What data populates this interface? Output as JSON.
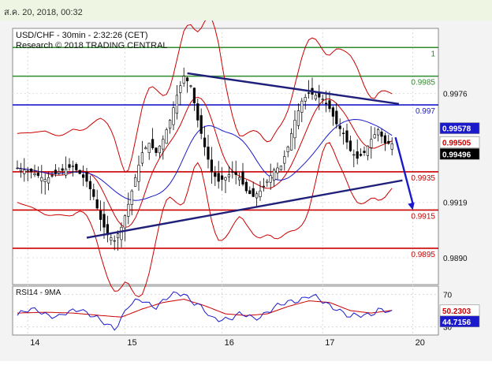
{
  "header": {
    "date": "ส.ค. 20, 2018, 00:32"
  },
  "chart_data": {
    "type": "candlestick",
    "title": "USD/CHF - 30min - 2:32:26 (CET)",
    "subtitle": "Research © 2018 TRADING CENTRAL",
    "x_ticks": [
      "14",
      "15",
      "16",
      "17",
      "20"
    ],
    "y_ticks": [
      "0.9976",
      "0.9919",
      "0.9890"
    ],
    "ylim": [
      0.9876,
      1.001
    ],
    "levels": [
      {
        "label": "1",
        "value": 1.0,
        "color": "#2e8b2e"
      },
      {
        "label": "0.9985",
        "value": 0.9985,
        "color": "#2e8b2e"
      },
      {
        "label": "0.997",
        "value": 0.997,
        "color": "#1a1acc"
      },
      {
        "label": "0.9935",
        "value": 0.9935,
        "color": "#cc0000"
      },
      {
        "label": "0.9915",
        "value": 0.9915,
        "color": "#cc0000"
      },
      {
        "label": "0.9895",
        "value": 0.9895,
        "color": "#cc0000"
      }
    ],
    "price_tags": [
      {
        "label": "0.99578",
        "value": 0.99578,
        "bg": "#1a1acc",
        "fg": "#ffffff"
      },
      {
        "label": "0.99505",
        "value": 0.99505,
        "bg": "#ffffff",
        "fg": "#cc0000"
      },
      {
        "label": "0.99496",
        "value": 0.99496,
        "bg": "#000000",
        "fg": "#ffffff"
      }
    ],
    "close_path": [
      [
        0,
        0.9937
      ],
      [
        4,
        0.9935
      ],
      [
        8,
        0.9931
      ],
      [
        12,
        0.9935
      ],
      [
        16,
        0.9938
      ],
      [
        20,
        0.993
      ],
      [
        22,
        0.9922
      ],
      [
        24,
        0.991
      ],
      [
        26,
        0.9902
      ],
      [
        28,
        0.9899
      ],
      [
        30,
        0.9906
      ],
      [
        32,
        0.9918
      ],
      [
        34,
        0.9932
      ],
      [
        36,
        0.9945
      ],
      [
        38,
        0.995
      ],
      [
        40,
        0.9945
      ],
      [
        42,
        0.9952
      ],
      [
        44,
        0.9962
      ],
      [
        46,
        0.9975
      ],
      [
        48,
        0.9985
      ],
      [
        50,
        0.998
      ],
      [
        52,
        0.9962
      ],
      [
        54,
        0.9948
      ],
      [
        56,
        0.9935
      ],
      [
        58,
        0.993
      ],
      [
        60,
        0.9932
      ],
      [
        62,
        0.9935
      ],
      [
        64,
        0.9932
      ],
      [
        66,
        0.9925
      ],
      [
        68,
        0.9922
      ],
      [
        70,
        0.9925
      ],
      [
        72,
        0.993
      ],
      [
        74,
        0.9936
      ],
      [
        76,
        0.9938
      ],
      [
        78,
        0.9948
      ],
      [
        80,
        0.9962
      ],
      [
        82,
        0.9972
      ],
      [
        84,
        0.9976
      ],
      [
        86,
        0.9975
      ],
      [
        88,
        0.9973
      ],
      [
        90,
        0.9968
      ],
      [
        92,
        0.996
      ],
      [
        94,
        0.9955
      ],
      [
        96,
        0.9946
      ],
      [
        98,
        0.9942
      ],
      [
        100,
        0.9945
      ],
      [
        102,
        0.9952
      ],
      [
        104,
        0.9957
      ],
      [
        106,
        0.995
      ],
      [
        108,
        0.99496
      ]
    ],
    "trendlines": [
      {
        "from": [
          49,
          0.99865
        ],
        "to": [
          110,
          0.99705
        ],
        "color": "#20207a"
      },
      {
        "from": [
          20,
          0.99005
        ],
        "to": [
          111,
          0.99305
        ],
        "color": "#20207a"
      }
    ],
    "forecast_arrow": {
      "from": [
        109,
        0.9953
      ],
      "to": [
        114,
        0.9915
      ],
      "color": "#1a1acc"
    },
    "rsi": {
      "label": "RSI14 - 9MA",
      "y_ticks": [
        "70",
        "30"
      ],
      "ylim": [
        20,
        80
      ],
      "tags": [
        {
          "label": "50.2303",
          "value": 50.2303,
          "bg": "#ffffff",
          "fg": "#cc0000"
        },
        {
          "label": "44.7156",
          "value": 44.7156,
          "bg": "#1a1acc",
          "fg": "#ffffff"
        }
      ],
      "rsi_path": [
        [
          0,
          44
        ],
        [
          6,
          52
        ],
        [
          12,
          40
        ],
        [
          18,
          55
        ],
        [
          24,
          35
        ],
        [
          28,
          30
        ],
        [
          32,
          55
        ],
        [
          36,
          62
        ],
        [
          40,
          57
        ],
        [
          44,
          66
        ],
        [
          48,
          72
        ],
        [
          52,
          58
        ],
        [
          56,
          38
        ],
        [
          60,
          42
        ],
        [
          64,
          44
        ],
        [
          68,
          40
        ],
        [
          72,
          50
        ],
        [
          76,
          55
        ],
        [
          80,
          64
        ],
        [
          84,
          68
        ],
        [
          88,
          60
        ],
        [
          92,
          55
        ],
        [
          96,
          40
        ],
        [
          100,
          45
        ],
        [
          104,
          52
        ],
        [
          108,
          44.7
        ]
      ],
      "ma_path": [
        [
          0,
          47
        ],
        [
          8,
          48
        ],
        [
          16,
          47
        ],
        [
          24,
          44
        ],
        [
          30,
          42
        ],
        [
          36,
          52
        ],
        [
          42,
          60
        ],
        [
          48,
          64
        ],
        [
          54,
          56
        ],
        [
          60,
          46
        ],
        [
          66,
          44
        ],
        [
          72,
          46
        ],
        [
          78,
          55
        ],
        [
          84,
          62
        ],
        [
          90,
          60
        ],
        [
          96,
          50
        ],
        [
          102,
          47
        ],
        [
          108,
          50.2
        ]
      ]
    }
  }
}
